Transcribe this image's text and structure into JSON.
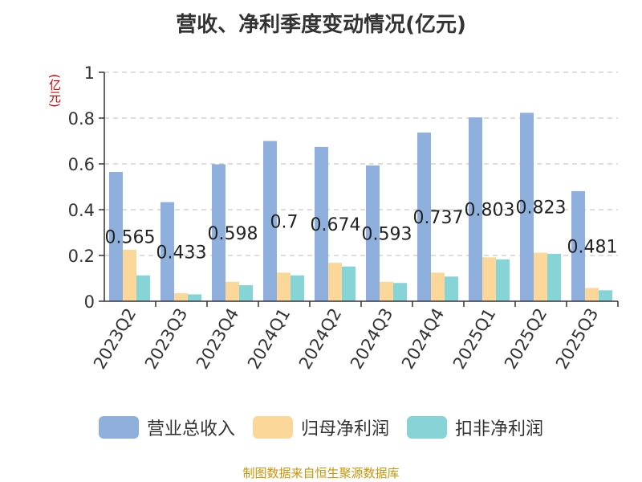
{
  "colors": {
    "revenue": "#8fb0dc",
    "net_profit": "#fcd79a",
    "deducted_profit": "#87d4d6",
    "value_label": "#222222",
    "grid": "#bbbbbb"
  },
  "chart_data": {
    "type": "bar",
    "title": "营收、净利季度变动情况(亿元)",
    "unit_label": "(亿元)",
    "categories": [
      "2023Q2",
      "2023Q3",
      "2023Q4",
      "2024Q1",
      "2024Q2",
      "2024Q3",
      "2024Q4",
      "2025Q1",
      "2025Q2",
      "2025Q3"
    ],
    "ylim": [
      0,
      1
    ],
    "yticks": [
      0,
      0.2,
      0.4,
      0.6,
      0.8,
      1
    ],
    "ytick_labels": [
      "0",
      "0.2",
      "0.4",
      "0.6",
      "0.8",
      "1"
    ],
    "grid": true,
    "legend_position": "bottom",
    "series": [
      {
        "name": "营业总收入",
        "values": [
          0.565,
          0.433,
          0.598,
          0.7,
          0.674,
          0.593,
          0.737,
          0.803,
          0.823,
          0.481
        ],
        "labels": [
          "0.565",
          "0.433",
          "0.598",
          "0.7",
          "0.674",
          "0.593",
          "0.737",
          "0.803",
          "0.823",
          "0.481"
        ]
      },
      {
        "name": "归母净利润",
        "values": [
          0.225,
          0.035,
          0.085,
          0.125,
          0.168,
          0.085,
          0.125,
          0.192,
          0.212,
          0.058
        ]
      },
      {
        "name": "扣非净利润",
        "values": [
          0.113,
          0.03,
          0.07,
          0.113,
          0.152,
          0.08,
          0.108,
          0.183,
          0.207,
          0.048
        ]
      }
    ]
  },
  "source": "制图数据来自恒生聚源数据库"
}
